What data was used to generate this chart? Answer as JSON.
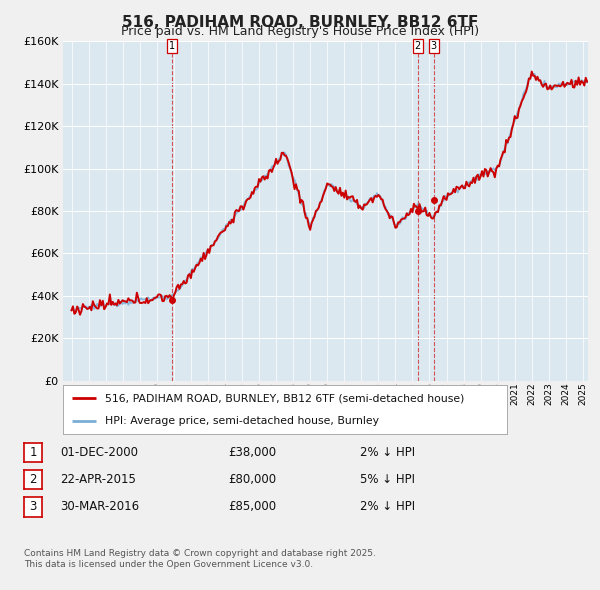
{
  "title": "516, PADIHAM ROAD, BURNLEY, BB12 6TF",
  "subtitle": "Price paid vs. HM Land Registry's House Price Index (HPI)",
  "red_label": "516, PADIHAM ROAD, BURNLEY, BB12 6TF (semi-detached house)",
  "blue_label": "HPI: Average price, semi-detached house, Burnley",
  "transactions": [
    {
      "num": 1,
      "date": "01-DEC-2000",
      "price": 38000,
      "pct": "2%",
      "dir": "↓",
      "x": 2000.92
    },
    {
      "num": 2,
      "date": "22-APR-2015",
      "price": 80000,
      "pct": "5%",
      "dir": "↓",
      "x": 2015.31
    },
    {
      "num": 3,
      "date": "30-MAR-2016",
      "price": 85000,
      "pct": "2%",
      "dir": "↓",
      "x": 2016.25
    }
  ],
  "footnote1": "Contains HM Land Registry data © Crown copyright and database right 2025.",
  "footnote2": "This data is licensed under the Open Government Licence v3.0.",
  "ylim": [
    0,
    160000
  ],
  "xlim": [
    1994.5,
    2025.3
  ],
  "bg_color": "#f0f0f0",
  "plot_bg": "#dce8f0",
  "red_color": "#cc0000",
  "blue_color": "#7aaed6",
  "grid_color": "#ffffff",
  "title_fontsize": 11,
  "subtitle_fontsize": 9
}
